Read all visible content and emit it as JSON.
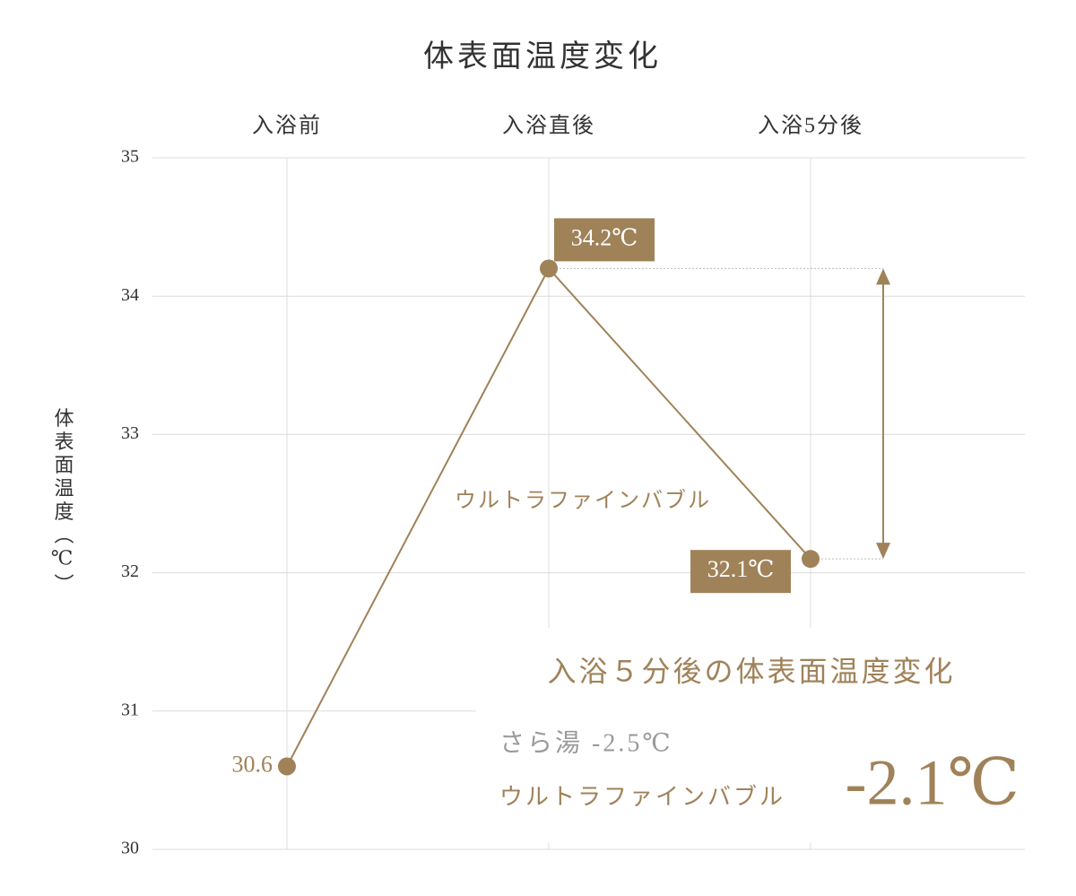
{
  "chart_data": {
    "type": "line",
    "title": "体表面温度変化",
    "y_label": "体表面温度（℃）",
    "categories": [
      "入浴前",
      "入浴直後",
      "入浴5分後"
    ],
    "series": [
      {
        "name": "ウルトラファインバブル",
        "color": "#a08259",
        "values": [
          30.6,
          34.2,
          32.1
        ],
        "value_labels": [
          "30.6",
          "34.2℃",
          "32.1℃"
        ]
      }
    ],
    "ylim": [
      30,
      35
    ],
    "yticks": [
      30,
      31,
      32,
      33,
      34,
      35
    ],
    "grid": true,
    "annotation": {
      "title": "入浴５分後の体表面温度変化",
      "comparison": "さら湯 -2.5℃",
      "series": "ウルトラファインバブル",
      "value": "-2.1℃"
    }
  }
}
